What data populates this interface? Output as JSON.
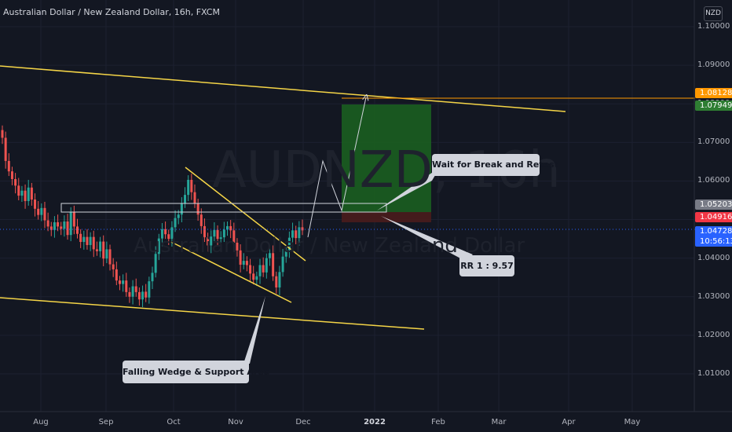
{
  "header": {
    "title": "Australian Dollar / New Zealand Dollar, 16h, FXCM"
  },
  "currency": "NZD",
  "watermark": {
    "symbol": "AUDNZD, 16h",
    "name": "Australian Dollar / New Zealand Dollar"
  },
  "colors": {
    "background": "#131722",
    "up": "#26a69a",
    "down": "#ef5350",
    "trendline": "#f5d547",
    "target_zone": "#1b5e20",
    "stop_zone": "#4a1c1c",
    "hline": "#ff9800",
    "callout": "#d1d4dc"
  },
  "price_tags": [
    {
      "label": "1.08128",
      "bg": "#ff9800"
    },
    {
      "label": "1.07949",
      "bg": "#2e7d32"
    },
    {
      "label": "1.05203",
      "bg": "#787b86"
    },
    {
      "label": "1.04916",
      "bg": "#f23645"
    },
    {
      "label": "1.04728",
      "bg": "#2962ff"
    },
    {
      "label": "10:56:13",
      "bg": "#2962ff"
    }
  ],
  "annotations": {
    "wait": "Wait for Break and Retest",
    "rr": "RR 1 : 9.57",
    "wedge": "Falling Wedge  & Support Area"
  },
  "chart_data": {
    "type": "candlestick",
    "title": "Australian Dollar / New Zealand Dollar, 16h, FXCM",
    "ylim": [
      1.0,
      1.105
    ],
    "y_ticks": [
      "1.10000",
      "1.09000",
      "1.08000",
      "1.07000",
      "1.06000",
      "1.05000",
      "1.04000",
      "1.03000",
      "1.02000",
      "1.01000"
    ],
    "x_ticks": [
      "Aug",
      "Sep",
      "Oct",
      "Nov",
      "Dec",
      "2022",
      "Feb",
      "Mar",
      "Apr",
      "May"
    ],
    "series": [
      {
        "close": [
          1.0712,
          1.0652,
          1.0625,
          1.0605,
          1.0588,
          1.0562,
          1.0575,
          1.0548,
          1.0583,
          1.0552,
          1.0528,
          1.0512,
          1.053,
          1.0498,
          1.0482,
          1.0473,
          1.0493,
          1.0482,
          1.0476,
          1.0495,
          1.046,
          1.052,
          1.0482,
          1.0463,
          1.0442,
          1.0455,
          1.0434,
          1.0455,
          1.0423,
          1.0418,
          1.0443,
          1.0399,
          1.0423,
          1.0384,
          1.0371,
          1.0342,
          1.0333,
          1.0342,
          1.0312,
          1.03,
          1.0327,
          1.0312,
          1.0293,
          1.0313,
          1.0298,
          1.034,
          1.0362,
          1.0411,
          1.0451,
          1.0475,
          1.0462,
          1.045,
          1.048,
          1.0504,
          1.0513,
          1.0542,
          1.0564,
          1.0603,
          1.0571,
          1.0542,
          1.0513,
          1.0483,
          1.0454,
          1.0433,
          1.0456,
          1.0473,
          1.045,
          1.0454,
          1.0474,
          1.0483,
          1.0472,
          1.044,
          1.042,
          1.0383,
          1.0393,
          1.0382,
          1.036,
          1.0344,
          1.0353,
          1.0382,
          1.0363,
          1.04,
          1.0413,
          1.0353,
          1.0324,
          1.0364,
          1.0404,
          1.0421,
          1.0453,
          1.0472,
          1.0452,
          1.048,
          1.0472
        ]
      }
    ],
    "trendlines_note": "Descending channel, falling wedge, resistance zone ~1.0510-1.0520, projected break-and-retest path",
    "horizontal_level": 1.08128,
    "position": {
      "entry": 1.0495,
      "target": 1.07949,
      "stop": 1.0466
    }
  }
}
